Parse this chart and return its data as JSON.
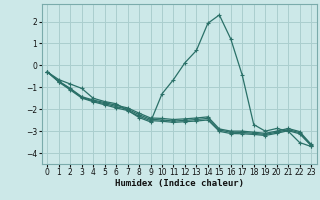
{
  "xlabel": "Humidex (Indice chaleur)",
  "xlim": [
    -0.5,
    23.5
  ],
  "ylim": [
    -4.5,
    2.8
  ],
  "yticks": [
    -4,
    -3,
    -2,
    -1,
    0,
    1,
    2
  ],
  "xticks": [
    0,
    1,
    2,
    3,
    4,
    5,
    6,
    7,
    8,
    9,
    10,
    11,
    12,
    13,
    14,
    15,
    16,
    17,
    18,
    19,
    20,
    21,
    22,
    23
  ],
  "bg_color": "#cce8e8",
  "grid_color": "#aacece",
  "line_color": "#2a7068",
  "lines": [
    {
      "x": [
        0,
        1,
        2,
        3,
        4,
        5,
        6,
        7,
        8,
        9,
        10,
        11,
        12,
        13,
        14,
        15,
        16,
        17,
        18,
        19,
        20,
        21,
        22,
        23
      ],
      "y": [
        -0.3,
        -0.65,
        -0.85,
        -1.05,
        -1.5,
        -1.65,
        -1.75,
        -2.05,
        -2.38,
        -2.58,
        -1.3,
        -0.65,
        0.12,
        0.68,
        1.92,
        2.3,
        1.2,
        -0.45,
        -2.7,
        -3.0,
        -2.88,
        -3.0,
        -3.52,
        -3.7
      ]
    },
    {
      "x": [
        0,
        1,
        2,
        3,
        4,
        5,
        6,
        7,
        8,
        9,
        10,
        11,
        12,
        13,
        14,
        15,
        16,
        17,
        18,
        19,
        20,
        21,
        22,
        23
      ],
      "y": [
        -0.3,
        -0.72,
        -1.05,
        -1.43,
        -1.58,
        -1.7,
        -1.82,
        -1.94,
        -2.18,
        -2.4,
        -2.42,
        -2.47,
        -2.44,
        -2.4,
        -2.35,
        -2.9,
        -3.0,
        -3.0,
        -3.05,
        -3.1,
        -3.0,
        -2.88,
        -3.02,
        -3.6
      ]
    },
    {
      "x": [
        0,
        1,
        2,
        3,
        4,
        5,
        6,
        7,
        8,
        9,
        10,
        11,
        12,
        13,
        14,
        15,
        16,
        17,
        18,
        19,
        20,
        21,
        22,
        23
      ],
      "y": [
        -0.3,
        -0.74,
        -1.08,
        -1.46,
        -1.62,
        -1.75,
        -1.88,
        -2.0,
        -2.25,
        -2.46,
        -2.49,
        -2.54,
        -2.51,
        -2.47,
        -2.42,
        -2.95,
        -3.05,
        -3.06,
        -3.1,
        -3.15,
        -3.05,
        -2.93,
        -3.07,
        -3.63
      ]
    },
    {
      "x": [
        0,
        1,
        2,
        3,
        4,
        5,
        6,
        7,
        8,
        9,
        10,
        11,
        12,
        13,
        14,
        15,
        16,
        17,
        18,
        19,
        20,
        21,
        22,
        23
      ],
      "y": [
        -0.3,
        -0.76,
        -1.12,
        -1.49,
        -1.66,
        -1.8,
        -1.94,
        -2.06,
        -2.32,
        -2.52,
        -2.55,
        -2.6,
        -2.57,
        -2.54,
        -2.49,
        -3.01,
        -3.11,
        -3.12,
        -3.15,
        -3.2,
        -3.1,
        -2.98,
        -3.12,
        -3.66
      ]
    }
  ]
}
